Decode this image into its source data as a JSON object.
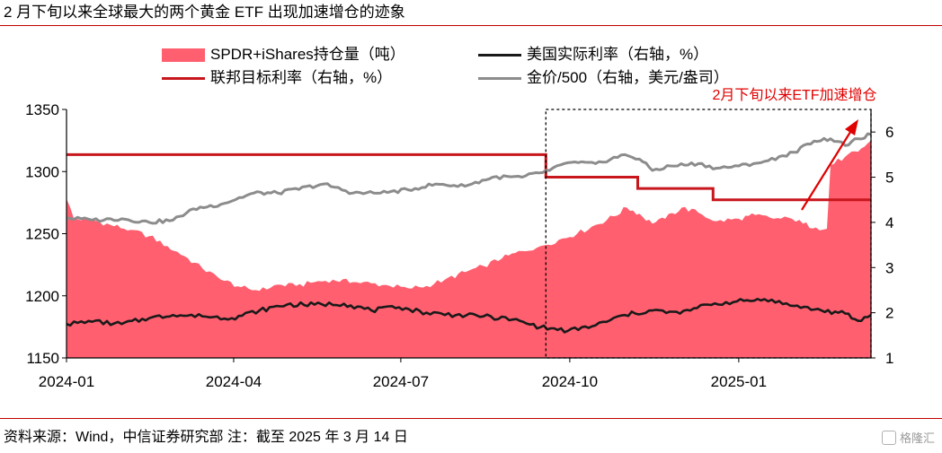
{
  "title": "2 月下旬以来全球最大的两个黄金 ETF 出现加速增仓的迹象",
  "source": "资料来源：Wind，中信证券研究部 注：截至 2025 年 3 月 14 日",
  "watermark": "格隆汇",
  "colors": {
    "holdings": "#ff5f6f",
    "fed_rate": "#c8161d",
    "real_rate": "#1a1a1a",
    "gold": "#8c8c8c",
    "annotation": "#e00000",
    "rule": "#c00000"
  },
  "chart_data": {
    "type": "area",
    "x_ticks": [
      "2024-01",
      "2024-04",
      "2024-07",
      "2024-10",
      "2025-01"
    ],
    "x_range": [
      "2024-01-01",
      "2025-03-14"
    ],
    "y_left": {
      "range": [
        1150,
        1350
      ],
      "ticks": [
        1150,
        1200,
        1250,
        1300,
        1350
      ]
    },
    "y_right": {
      "range": [
        1,
        6.5
      ],
      "ticks": [
        1,
        2,
        3,
        4,
        5,
        6
      ]
    },
    "annotation": {
      "text": "2月下旬以来ETF加速增仓",
      "box_x_range": [
        "2024-09-18",
        "2025-03-14"
      ]
    },
    "series": [
      {
        "name": "SPDR+iShares持仓量（吨）",
        "type": "area",
        "axis": "left",
        "points": [
          [
            "2024-01-01",
            1278
          ],
          [
            "2024-01-05",
            1262
          ],
          [
            "2024-01-15",
            1261
          ],
          [
            "2024-01-25",
            1257
          ],
          [
            "2024-02-05",
            1253
          ],
          [
            "2024-02-15",
            1248
          ],
          [
            "2024-02-25",
            1240
          ],
          [
            "2024-03-05",
            1232
          ],
          [
            "2024-03-15",
            1222
          ],
          [
            "2024-03-25",
            1213
          ],
          [
            "2024-04-05",
            1207
          ],
          [
            "2024-04-15",
            1204
          ],
          [
            "2024-04-25",
            1209
          ],
          [
            "2024-05-05",
            1208
          ],
          [
            "2024-05-15",
            1211
          ],
          [
            "2024-05-25",
            1213
          ],
          [
            "2024-06-05",
            1211
          ],
          [
            "2024-06-15",
            1210
          ],
          [
            "2024-06-25",
            1208
          ],
          [
            "2024-07-05",
            1206
          ],
          [
            "2024-07-15",
            1208
          ],
          [
            "2024-07-25",
            1213
          ],
          [
            "2024-08-05",
            1219
          ],
          [
            "2024-08-15",
            1224
          ],
          [
            "2024-08-25",
            1230
          ],
          [
            "2024-09-05",
            1236
          ],
          [
            "2024-09-15",
            1240
          ],
          [
            "2024-09-25",
            1245
          ],
          [
            "2024-10-05",
            1250
          ],
          [
            "2024-10-15",
            1257
          ],
          [
            "2024-10-25",
            1264
          ],
          [
            "2024-11-01",
            1271
          ],
          [
            "2024-11-08",
            1266
          ],
          [
            "2024-11-15",
            1258
          ],
          [
            "2024-11-22",
            1262
          ],
          [
            "2024-12-01",
            1271
          ],
          [
            "2024-12-10",
            1267
          ],
          [
            "2024-12-20",
            1260
          ],
          [
            "2025-01-01",
            1262
          ],
          [
            "2025-01-10",
            1265
          ],
          [
            "2025-01-20",
            1262
          ],
          [
            "2025-01-30",
            1262
          ],
          [
            "2025-02-05",
            1258
          ],
          [
            "2025-02-12",
            1255
          ],
          [
            "2025-02-18",
            1254
          ],
          [
            "2025-02-20",
            1305
          ],
          [
            "2025-02-28",
            1312
          ],
          [
            "2025-03-07",
            1316
          ],
          [
            "2025-03-14",
            1325
          ]
        ]
      },
      {
        "name": "美国实际利率（右轴，%）",
        "type": "line",
        "axis": "right",
        "points": [
          [
            "2024-01-01",
            1.75
          ],
          [
            "2024-01-15",
            1.8
          ],
          [
            "2024-01-31",
            1.75
          ],
          [
            "2024-02-15",
            1.88
          ],
          [
            "2024-02-28",
            1.95
          ],
          [
            "2024-03-15",
            1.92
          ],
          [
            "2024-03-31",
            1.88
          ],
          [
            "2024-04-15",
            2.05
          ],
          [
            "2024-04-30",
            2.18
          ],
          [
            "2024-05-15",
            2.18
          ],
          [
            "2024-05-31",
            2.2
          ],
          [
            "2024-06-15",
            2.05
          ],
          [
            "2024-06-30",
            2.12
          ],
          [
            "2024-07-15",
            2.0
          ],
          [
            "2024-07-31",
            1.95
          ],
          [
            "2024-08-15",
            1.92
          ],
          [
            "2024-08-31",
            1.85
          ],
          [
            "2024-09-15",
            1.68
          ],
          [
            "2024-09-30",
            1.6
          ],
          [
            "2024-10-15",
            1.72
          ],
          [
            "2024-10-31",
            1.95
          ],
          [
            "2024-11-15",
            2.05
          ],
          [
            "2024-11-30",
            1.98
          ],
          [
            "2024-12-15",
            2.18
          ],
          [
            "2024-12-31",
            2.25
          ],
          [
            "2025-01-15",
            2.3
          ],
          [
            "2025-01-31",
            2.15
          ],
          [
            "2025-02-15",
            2.05
          ],
          [
            "2025-02-28",
            1.98
          ],
          [
            "2025-03-07",
            1.82
          ],
          [
            "2025-03-14",
            1.95
          ]
        ]
      },
      {
        "name": "联邦目标利率（右轴，%）",
        "type": "step",
        "axis": "right",
        "points": [
          [
            "2024-01-01",
            5.5
          ],
          [
            "2024-09-18",
            5.0
          ],
          [
            "2024-11-07",
            4.75
          ],
          [
            "2024-12-18",
            4.5
          ],
          [
            "2025-03-14",
            4.5
          ]
        ]
      },
      {
        "name": "金价/500（右轴，美元/盎司）",
        "type": "line",
        "axis": "right",
        "points": [
          [
            "2024-01-01",
            4.1
          ],
          [
            "2024-01-15",
            4.05
          ],
          [
            "2024-01-31",
            4.08
          ],
          [
            "2024-02-15",
            4.0
          ],
          [
            "2024-02-28",
            4.05
          ],
          [
            "2024-03-10",
            4.3
          ],
          [
            "2024-03-25",
            4.4
          ],
          [
            "2024-04-12",
            4.65
          ],
          [
            "2024-04-25",
            4.65
          ],
          [
            "2024-05-20",
            4.85
          ],
          [
            "2024-06-05",
            4.65
          ],
          [
            "2024-06-20",
            4.65
          ],
          [
            "2024-07-05",
            4.72
          ],
          [
            "2024-07-20",
            4.85
          ],
          [
            "2024-08-05",
            4.8
          ],
          [
            "2024-08-20",
            5.0
          ],
          [
            "2024-09-05",
            5.0
          ],
          [
            "2024-09-20",
            5.15
          ],
          [
            "2024-09-30",
            5.32
          ],
          [
            "2024-10-15",
            5.3
          ],
          [
            "2024-10-31",
            5.5
          ],
          [
            "2024-11-08",
            5.4
          ],
          [
            "2024-11-15",
            5.15
          ],
          [
            "2024-11-25",
            5.25
          ],
          [
            "2024-12-10",
            5.3
          ],
          [
            "2024-12-20",
            5.2
          ],
          [
            "2025-01-01",
            5.25
          ],
          [
            "2025-01-15",
            5.35
          ],
          [
            "2025-01-31",
            5.55
          ],
          [
            "2025-02-11",
            5.8
          ],
          [
            "2025-02-20",
            5.85
          ],
          [
            "2025-02-28",
            5.7
          ],
          [
            "2025-03-07",
            5.85
          ],
          [
            "2025-03-14",
            5.95
          ]
        ]
      }
    ]
  }
}
